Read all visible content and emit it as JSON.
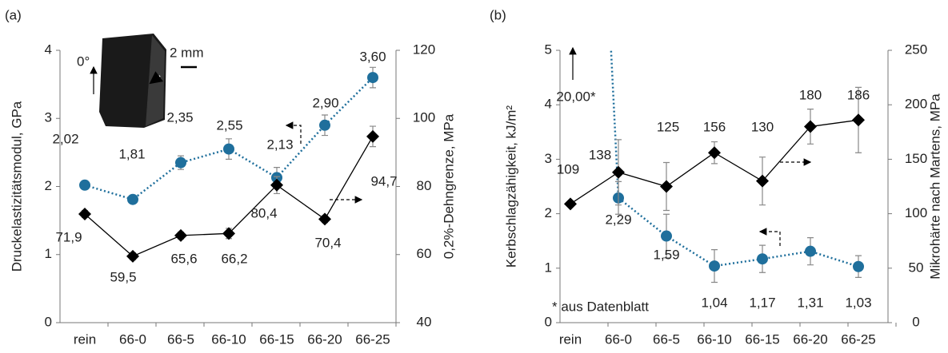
{
  "chart_data": [
    {
      "type": "line",
      "label": "(a)",
      "categories": [
        "rein",
        "66-0",
        "66-5",
        "66-10",
        "66-15",
        "66-20",
        "66-25"
      ],
      "y_label": "Druckelastizitätsmodul, GPa",
      "y2_label": "0,2%-Dehngrenze, MPa",
      "ylim": [
        0,
        4
      ],
      "yticks": [
        0,
        1,
        2,
        3,
        4
      ],
      "y2lim": [
        40,
        120
      ],
      "y2ticks": [
        40,
        60,
        80,
        100,
        120
      ],
      "annotations": [
        "0°",
        "2 mm"
      ],
      "series": [
        {
          "color": "#1f6f9c",
          "marker": "circle",
          "dotted": true,
          "values": [
            2.02,
            1.81,
            2.35,
            2.55,
            2.13,
            2.9,
            3.6
          ],
          "value_labels": [
            "2,02",
            "1,81",
            "2,35",
            "2,55",
            "2,13",
            "2,90",
            "3,60"
          ],
          "errors": [
            0.05,
            0.05,
            0.1,
            0.15,
            0.15,
            0.15,
            0.15
          ]
        },
        {
          "color": "#000000",
          "marker": "diamond",
          "dotted": false,
          "axis": "y2",
          "values": [
            71.9,
            59.5,
            65.6,
            66.2,
            80.4,
            70.4,
            94.7
          ],
          "value_labels": [
            "71,9",
            "59,5",
            "65,6",
            "66,2",
            "80,4",
            "70,4",
            "94,7"
          ],
          "errors": [
            1,
            1,
            1,
            1.5,
            2.5,
            1,
            3
          ]
        }
      ]
    },
    {
      "type": "line",
      "label": "(b)",
      "categories": [
        "rein",
        "66-0",
        "66-5",
        "66-10",
        "66-15",
        "66-20",
        "66-25"
      ],
      "y_label": "Kerbschlagzähigkeit, kJ/m²",
      "y2_label": "Mikrohärte nach Martens, MPa",
      "ylim": [
        0,
        5
      ],
      "yticks": [
        0,
        1,
        2,
        3,
        4,
        5
      ],
      "y2lim": [
        0,
        250
      ],
      "y2ticks": [
        0,
        50,
        100,
        150,
        200,
        250
      ],
      "note": "* aus Datenblatt",
      "series": [
        {
          "color": "#1f6f9c",
          "marker": "circle",
          "dotted": true,
          "values": [
            20.0,
            2.29,
            1.59,
            1.04,
            1.17,
            1.31,
            1.03
          ],
          "value_labels": [
            "20,00*",
            "2,29",
            "1,59",
            "1,04",
            "1,17",
            "1,31",
            "1,03"
          ],
          "errors": [
            null,
            0.3,
            0.4,
            0.3,
            0.25,
            0.25,
            0.2
          ]
        },
        {
          "color": "#000000",
          "marker": "diamond",
          "dotted": false,
          "axis": "y2",
          "values": [
            109,
            138,
            125,
            156,
            130,
            180,
            186
          ],
          "value_labels": [
            "109",
            "138",
            "125",
            "156",
            "130",
            "180",
            "186"
          ],
          "errors": [
            null,
            30,
            22,
            10,
            22,
            16,
            30
          ]
        }
      ]
    }
  ]
}
